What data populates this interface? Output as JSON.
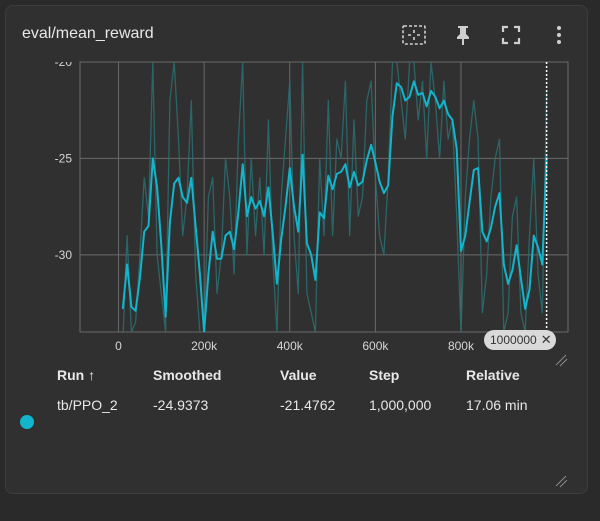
{
  "card": {
    "title": "eval/mean_reward",
    "icons": [
      "fit-domain-icon",
      "pin-icon",
      "fullscreen-icon",
      "more-vert-icon"
    ]
  },
  "colors": {
    "series": "#12b5cb",
    "raw": "#2c6e72",
    "grid": "#6a6a6a",
    "plot_bg": "#303030"
  },
  "chart_data": {
    "type": "line",
    "title": "",
    "xlabel": "",
    "ylabel": "",
    "xlim": [
      -90000,
      1050000
    ],
    "ylim": [
      -34,
      -20
    ],
    "x_ticks": [
      0,
      200000,
      400000,
      600000,
      800000
    ],
    "x_tick_labels": [
      "0",
      "200k",
      "400k",
      "600k",
      "800k"
    ],
    "y_ticks": [
      -20,
      -25,
      -30
    ],
    "y_tick_labels": [
      "-20",
      "-25",
      "-30"
    ],
    "grid": true,
    "cursor_step": 1000000,
    "cursor_label": "1000000",
    "series": [
      {
        "name": "tb/PPO_2",
        "role": "smoothed",
        "x": [
          10000,
          20000,
          30000,
          40000,
          50000,
          60000,
          70000,
          80000,
          90000,
          100000,
          110000,
          120000,
          130000,
          140000,
          150000,
          160000,
          170000,
          180000,
          190000,
          200000,
          210000,
          220000,
          230000,
          240000,
          250000,
          260000,
          270000,
          280000,
          290000,
          300000,
          310000,
          320000,
          330000,
          340000,
          350000,
          360000,
          370000,
          380000,
          390000,
          400000,
          410000,
          420000,
          430000,
          440000,
          450000,
          460000,
          470000,
          480000,
          490000,
          500000,
          510000,
          520000,
          530000,
          540000,
          550000,
          560000,
          570000,
          580000,
          590000,
          600000,
          610000,
          620000,
          630000,
          640000,
          650000,
          660000,
          670000,
          680000,
          690000,
          700000,
          710000,
          720000,
          730000,
          740000,
          750000,
          760000,
          770000,
          780000,
          790000,
          800000,
          810000,
          820000,
          830000,
          840000,
          850000,
          860000,
          870000,
          880000,
          890000,
          900000,
          910000,
          920000,
          930000,
          940000,
          950000,
          960000,
          970000,
          980000,
          990000,
          1000000
        ],
        "values": [
          -32.8,
          -30.5,
          -32.7,
          -32.9,
          -31.2,
          -28.8,
          -28.5,
          -25.0,
          -26.5,
          -29.5,
          -33.2,
          -28.3,
          -26.3,
          -26.0,
          -27.0,
          -27.3,
          -26.0,
          -28.5,
          -31.0,
          -34.0,
          -31.0,
          -28.8,
          -30.2,
          -30.2,
          -29.0,
          -28.8,
          -29.7,
          -27.8,
          -25.3,
          -28.0,
          -27.0,
          -27.6,
          -27.2,
          -28.0,
          -26.5,
          -28.8,
          -31.5,
          -29.2,
          -27.5,
          -25.5,
          -27.5,
          -28.8,
          -24.8,
          -29.4,
          -30.0,
          -31.3,
          -27.8,
          -28.1,
          -25.9,
          -26.6,
          -25.8,
          -25.7,
          -25.3,
          -26.5,
          -25.7,
          -26.4,
          -26.2,
          -25.1,
          -24.3,
          -25.2,
          -26.2,
          -26.8,
          -26.4,
          -22.8,
          -21.1,
          -21.3,
          -22.0,
          -21.8,
          -21.0,
          -21.7,
          -21.6,
          -22.3,
          -21.5,
          -21.8,
          -22.4,
          -22.0,
          -22.7,
          -23.0,
          -24.5,
          -29.8,
          -29.0,
          -27.3,
          -25.6,
          -25.5,
          -28.8,
          -29.3,
          -28.6,
          -27.5,
          -26.8,
          -30.5,
          -31.5,
          -30.8,
          -29.5,
          -31.2,
          -32.8,
          -31.8,
          -29.0,
          -29.6,
          -30.5,
          -24.9
        ]
      },
      {
        "name": "tb/PPO_2",
        "role": "raw",
        "x": [
          10000,
          20000,
          30000,
          40000,
          50000,
          60000,
          70000,
          80000,
          90000,
          100000,
          110000,
          120000,
          130000,
          140000,
          150000,
          160000,
          170000,
          180000,
          190000,
          200000,
          210000,
          220000,
          230000,
          240000,
          250000,
          260000,
          270000,
          280000,
          290000,
          300000,
          310000,
          320000,
          330000,
          340000,
          350000,
          360000,
          370000,
          380000,
          390000,
          400000,
          410000,
          420000,
          430000,
          440000,
          450000,
          460000,
          470000,
          480000,
          490000,
          500000,
          510000,
          520000,
          530000,
          540000,
          550000,
          560000,
          570000,
          580000,
          590000,
          600000,
          610000,
          620000,
          630000,
          640000,
          650000,
          660000,
          670000,
          680000,
          690000,
          700000,
          710000,
          720000,
          730000,
          740000,
          750000,
          760000,
          770000,
          780000,
          790000,
          800000,
          810000,
          820000,
          830000,
          840000,
          850000,
          860000,
          870000,
          880000,
          890000,
          900000,
          910000,
          920000,
          930000,
          940000,
          950000,
          960000,
          970000,
          980000,
          990000,
          1000000
        ],
        "values": [
          -34.5,
          -29.0,
          -34.0,
          -33.5,
          -30.0,
          -26.0,
          -28.0,
          -20.0,
          -30.0,
          -32.0,
          -34.0,
          -22.0,
          -20.0,
          -24.0,
          -29.0,
          -27.0,
          -22.0,
          -31.0,
          -34.0,
          -34.0,
          -27.0,
          -26.0,
          -32.0,
          -30.0,
          -25.0,
          -27.0,
          -31.0,
          -24.0,
          -20.0,
          -30.0,
          -25.0,
          -29.0,
          -26.0,
          -30.0,
          -23.0,
          -30.0,
          -34.0,
          -27.0,
          -24.0,
          -21.0,
          -29.0,
          -32.0,
          -20.0,
          -32.0,
          -33.0,
          -34.0,
          -25.0,
          -29.0,
          -22.0,
          -29.0,
          -24.0,
          -25.0,
          -21.0,
          -29.0,
          -23.0,
          -28.0,
          -27.0,
          -22.0,
          -21.0,
          -26.0,
          -29.0,
          -30.0,
          -26.0,
          -20.0,
          -20.0,
          -22.0,
          -24.0,
          -20.0,
          -20.0,
          -23.0,
          -21.0,
          -25.0,
          -20.0,
          -22.0,
          -25.0,
          -21.0,
          -24.0,
          -23.0,
          -28.0,
          -34.0,
          -27.0,
          -24.0,
          -22.0,
          -24.0,
          -33.0,
          -31.0,
          -27.0,
          -25.0,
          -24.0,
          -34.0,
          -33.0,
          -28.0,
          -27.0,
          -33.0,
          -34.0,
          -29.0,
          -25.0,
          -31.0,
          -33.0,
          -21.5
        ]
      }
    ]
  },
  "table": {
    "headers": {
      "run": "Run ↑",
      "smoothed": "Smoothed",
      "value": "Value",
      "step": "Step",
      "relative": "Relative"
    },
    "rows": [
      {
        "run": "tb/PPO_2",
        "smoothed": "-24.9373",
        "value": "-21.4762",
        "step": "1,000,000",
        "relative": "17.06 min",
        "color": "#12b5cb"
      }
    ]
  }
}
